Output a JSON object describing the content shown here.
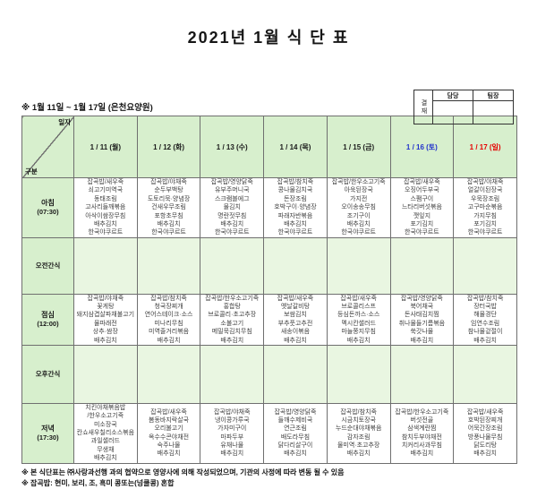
{
  "page": {
    "title": "2021년 1월 식 단 표",
    "subtitle": "※ 1월 11일 ~ 1월 17일 (은천요양원)",
    "notes": [
      "※ 본 식단표는 ㈜사랑과선행 과의 협약으로 영양사에 의해 작성되었으며, 기관의 사정에 따라 변동 될 수 있음",
      "※ 잡곡밥: 현미, 보리, 조, 흑미 콩또는(넝쿨콩) 혼합"
    ]
  },
  "approval": {
    "stamp": "결재",
    "columns": [
      "담당",
      "팀장"
    ]
  },
  "colors": {
    "header_bg": "#d7efcd",
    "snack_bg": "#e9f6e1",
    "saturday_text": "#2233cc",
    "sunday_text": "#e60000"
  },
  "menu_table": {
    "corner": {
      "top_right": "일자",
      "bottom_left": "구분"
    },
    "day_headers": [
      {
        "label": "1 / 11 (월)",
        "type": "weekday"
      },
      {
        "label": "1 / 12 (화)",
        "type": "weekday"
      },
      {
        "label": "1 / 13 (수)",
        "type": "weekday"
      },
      {
        "label": "1 / 14 (목)",
        "type": "weekday"
      },
      {
        "label": "1 / 15 (금)",
        "type": "weekday"
      },
      {
        "label": "1 / 16 (토)",
        "type": "saturday"
      },
      {
        "label": "1 / 17 (일)",
        "type": "sunday"
      }
    ],
    "meal_rows": [
      {
        "label": "아침",
        "time": "(07:30)",
        "type": "meal",
        "menus": [
          [
            "잡곡밥/새우죽",
            "쇠고기미역국",
            "동태조림",
            "고사리들깨볶음",
            "아삭이쌈장무침",
            "배추김치",
            "한국야쿠르트"
          ],
          [
            "잡곡밥/야채죽",
            "순두부백탕",
            "도토리묵·양념장",
            "건새우무조림",
            "포항초무침",
            "배추김치",
            "한국야쿠르트"
          ],
          [
            "잡곡밥/영양닭죽",
            "유부주머니국",
            "스크램블에그",
            "물김치",
            "명란젓무침",
            "배추김치",
            "한국야쿠르트"
          ],
          [
            "잡곡밥/참치죽",
            "콩나물김치국",
            "돈장조림",
            "호박구이·양념장",
            "파래자반볶음",
            "배추김치",
            "한국야쿠르트"
          ],
          [
            "잡곡밥/한우소고기죽",
            "아욱된장국",
            "가지전",
            "오이송송무침",
            "조기구이",
            "배추김치",
            "한국야쿠르트"
          ],
          [
            "잡곡밥/새우죽",
            "오징어두부국",
            "스팸구이",
            "느타리버섯볶음",
            "깻잎지",
            "포기김치",
            "한국야쿠르트"
          ],
          [
            "잡곡밥/야채죽",
            "얼갈이된장국",
            "우묵장조림",
            "고구마순볶음",
            "가지무침",
            "포기김치",
            "한국야쿠르트"
          ]
        ]
      },
      {
        "label": "오전간식",
        "time": "",
        "type": "snack",
        "menus": [
          [],
          [],
          [],
          [],
          [],
          [],
          []
        ]
      },
      {
        "label": "점심",
        "time": "(12:00)",
        "type": "meal",
        "menus": [
          [
            "잡곡밥/야채죽",
            "꽃게탕",
            "돼지삼겹살파채불고기",
            "물파래전",
            "상추·쌈장",
            "배추김치"
          ],
          [
            "잡곡밥/참치죽",
            "청국장찌개",
            "연어스테이크·소스",
            "미나리무침",
            "미역줄거리볶음",
            "배추김치"
          ],
          [
            "잡곡밥/한우소고기죽",
            "홍합탕",
            "브로콜리·초고추장",
            "소불고기",
            "메밀묵김치무침",
            "배추김치"
          ],
          [
            "잡곡밥/새우죽",
            "옛날갈비탕",
            "보쌈김치",
            "부추풋고추전",
            "새송이볶음",
            "배추김치"
          ],
          [
            "잡곡밥/새우죽",
            "브로콜리스프",
            "등심돈까스·소스",
            "멕시칸샐러드",
            "마늘쫑지무침",
            "배추김치"
          ],
          [
            "잡곡밥/영양닭죽",
            "북어채국",
            "돈사태김치찜",
            "취나물들기름볶음",
            "쑥갓나물",
            "배추김치"
          ],
          [
            "잡곡밥/참치죽",
            "장터국밥",
            "해물경단",
            "임연수조림",
            "참나물겉절이",
            "배추김치"
          ]
        ]
      },
      {
        "label": "오후간식",
        "time": "",
        "type": "snack",
        "menus": [
          [],
          [],
          [],
          [],
          [],
          [],
          []
        ]
      },
      {
        "label": "저녁",
        "time": "(17:30)",
        "type": "meal",
        "menus": [
          [
            "치킨야채볶음밥",
            "/한우소고기죽",
            "미소장국",
            "칸쇼새우칠리소스볶음",
            "과일샐러드",
            "무생채",
            "배추김치"
          ],
          [
            "잡곡밥/새우죽",
            "봄동바지락살국",
            "오리불고기",
            "옥수수콘야채전",
            "숙주나물",
            "배추김치"
          ],
          [
            "잡곡밥/야채죽",
            "냉이콩가루국",
            "가자미구이",
            "마파두부",
            "유채나물",
            "배추김치"
          ],
          [
            "잡곡밥/영양닭죽",
            "들깨수제비국",
            "연근조림",
            "배도라무침",
            "닭다리살구이",
            "배추김치"
          ],
          [
            "잡곡밥/참치죽",
            "시금치토장국",
            "누드순대야채볶음",
            "감자조림",
            "물미역·초고추장",
            "배추김치"
          ],
          [
            "잡곡밥/한우소고기죽",
            "버섯전골",
            "삼색계란찜",
            "참치두부야채전",
            "치커리사과무침",
            "배추김치"
          ],
          [
            "잡곡밥/새우죽",
            "호박된장찌개",
            "어묵간장조림",
            "방풍나물무침",
            "닭도리탕",
            "배추김치"
          ]
        ]
      }
    ]
  }
}
